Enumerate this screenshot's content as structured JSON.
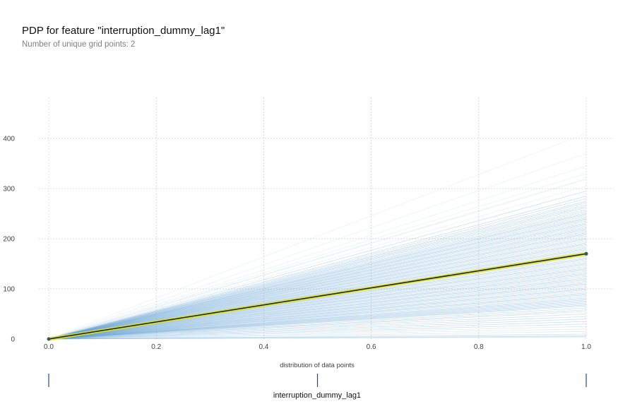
{
  "chart_data": {
    "type": "line",
    "title": "PDP for feature \"interruption_dummy_lag1\"",
    "subtitle": "Number of unique grid points: 2",
    "xlabel": "interruption_dummy_lag1",
    "distribution_label": "distribution of data points",
    "xlim": [
      0,
      1
    ],
    "ylim": [
      0,
      480
    ],
    "x_ticks": [
      0.0,
      0.2,
      0.4,
      0.6,
      0.8,
      1.0
    ],
    "x_tick_labels": [
      "0.0",
      "0.2",
      "0.4",
      "0.6",
      "0.8",
      "1.0"
    ],
    "y_ticks": [
      0,
      100,
      200,
      300,
      400
    ],
    "y_tick_labels": [
      "0",
      "100",
      "200",
      "300",
      "400"
    ],
    "grid": true,
    "pdp": {
      "x": [
        0,
        1
      ],
      "y": [
        0,
        170
      ]
    },
    "ice_lines": {
      "x": [
        0,
        1
      ],
      "end_values": [
        410,
        370,
        345,
        330,
        320,
        318,
        305,
        295,
        285,
        280,
        275,
        272,
        268,
        265,
        262,
        258,
        255,
        252,
        250,
        248,
        245,
        242,
        240,
        238,
        235,
        232,
        230,
        228,
        225,
        222,
        220,
        218,
        215,
        212,
        210,
        208,
        205,
        202,
        200,
        198,
        195,
        192,
        190,
        188,
        185,
        182,
        180,
        178,
        175,
        172,
        170,
        168,
        165,
        162,
        160,
        158,
        155,
        152,
        150,
        148,
        145,
        142,
        140,
        138,
        135,
        132,
        130,
        128,
        125,
        122,
        120,
        118,
        115,
        112,
        110,
        108,
        105,
        102,
        100,
        98,
        95,
        92,
        90,
        88,
        85,
        82,
        80,
        78,
        76,
        74,
        72,
        70,
        68,
        66,
        62,
        58,
        55,
        50,
        45,
        40,
        35,
        30,
        25,
        20,
        15,
        10,
        8,
        6,
        5,
        4
      ]
    },
    "distribution_points": [
      0,
      0.5,
      1
    ],
    "colors": {
      "ice": "#5b9ed0",
      "pdp": "#1a1a1a",
      "pdp_band": "#d9e021",
      "pdp_point": "#2e5e4e",
      "grid": "#d4d4d4",
      "distribution_tick": "#1f4e79"
    }
  }
}
